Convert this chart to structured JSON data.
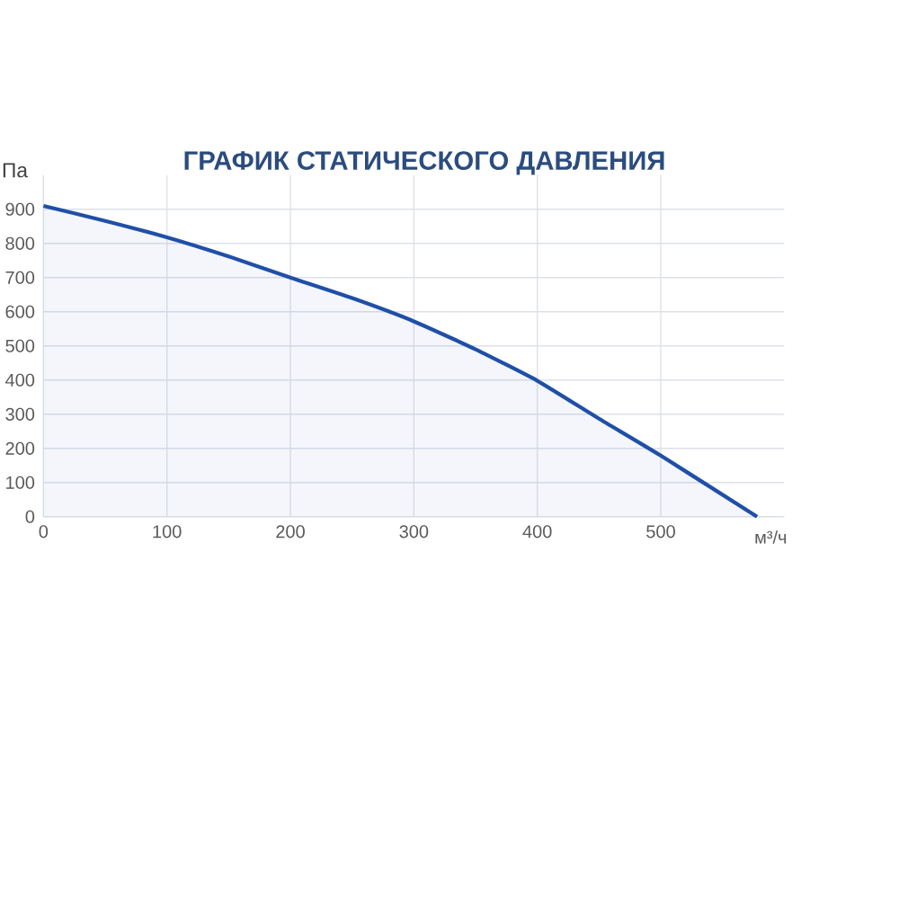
{
  "chart_data": {
    "type": "area",
    "title": "ГРАФИК СТАТИЧЕСКОГО ДАВЛЕНИЯ",
    "xlabel": "м³/ч",
    "ylabel": "Па",
    "x": [
      0,
      50,
      100,
      150,
      200,
      250,
      300,
      350,
      400,
      450,
      500,
      578
    ],
    "series": [
      {
        "color": "#1f4fa8",
        "values": [
          910,
          866,
          818,
          762,
          700,
          640,
          572,
          490,
          398,
          287,
          179,
          0
        ]
      }
    ],
    "xlim": [
      0,
      600
    ],
    "ylim": [
      0,
      1000
    ],
    "xticks": [
      0,
      100,
      200,
      300,
      400,
      500
    ],
    "yticks": [
      0,
      100,
      200,
      300,
      400,
      500,
      600,
      700,
      800,
      900
    ],
    "grid": true,
    "marker": "none",
    "line_style": "solid"
  }
}
